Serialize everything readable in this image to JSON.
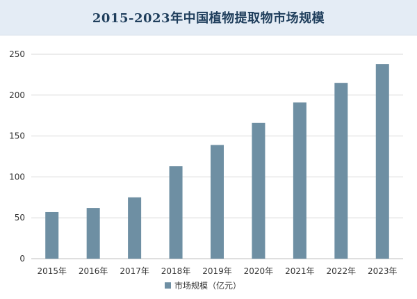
{
  "chart_data": {
    "type": "bar",
    "title": "2015-2023年中国植物提取物市场规模",
    "categories": [
      "2015年",
      "2016年",
      "2017年",
      "2018年",
      "2019年",
      "2020年",
      "2021年",
      "2022年",
      "2023年"
    ],
    "series": [
      {
        "name": "市场规模（亿元）",
        "values": [
          57,
          62,
          75,
          113,
          139,
          166,
          191,
          215,
          238
        ]
      }
    ],
    "xlabel": "",
    "ylabel": "",
    "ylim": [
      0,
      250
    ],
    "yticks": [
      0,
      50,
      100,
      150,
      200,
      250
    ],
    "grid": true,
    "legend": "bottom",
    "colors": {
      "bar": "#6e8fa3",
      "grid": "#d9d9d9",
      "axis": "#bfbfbf",
      "title_bg": "#e4ecf5",
      "title_text": "#1f3e5c"
    }
  }
}
